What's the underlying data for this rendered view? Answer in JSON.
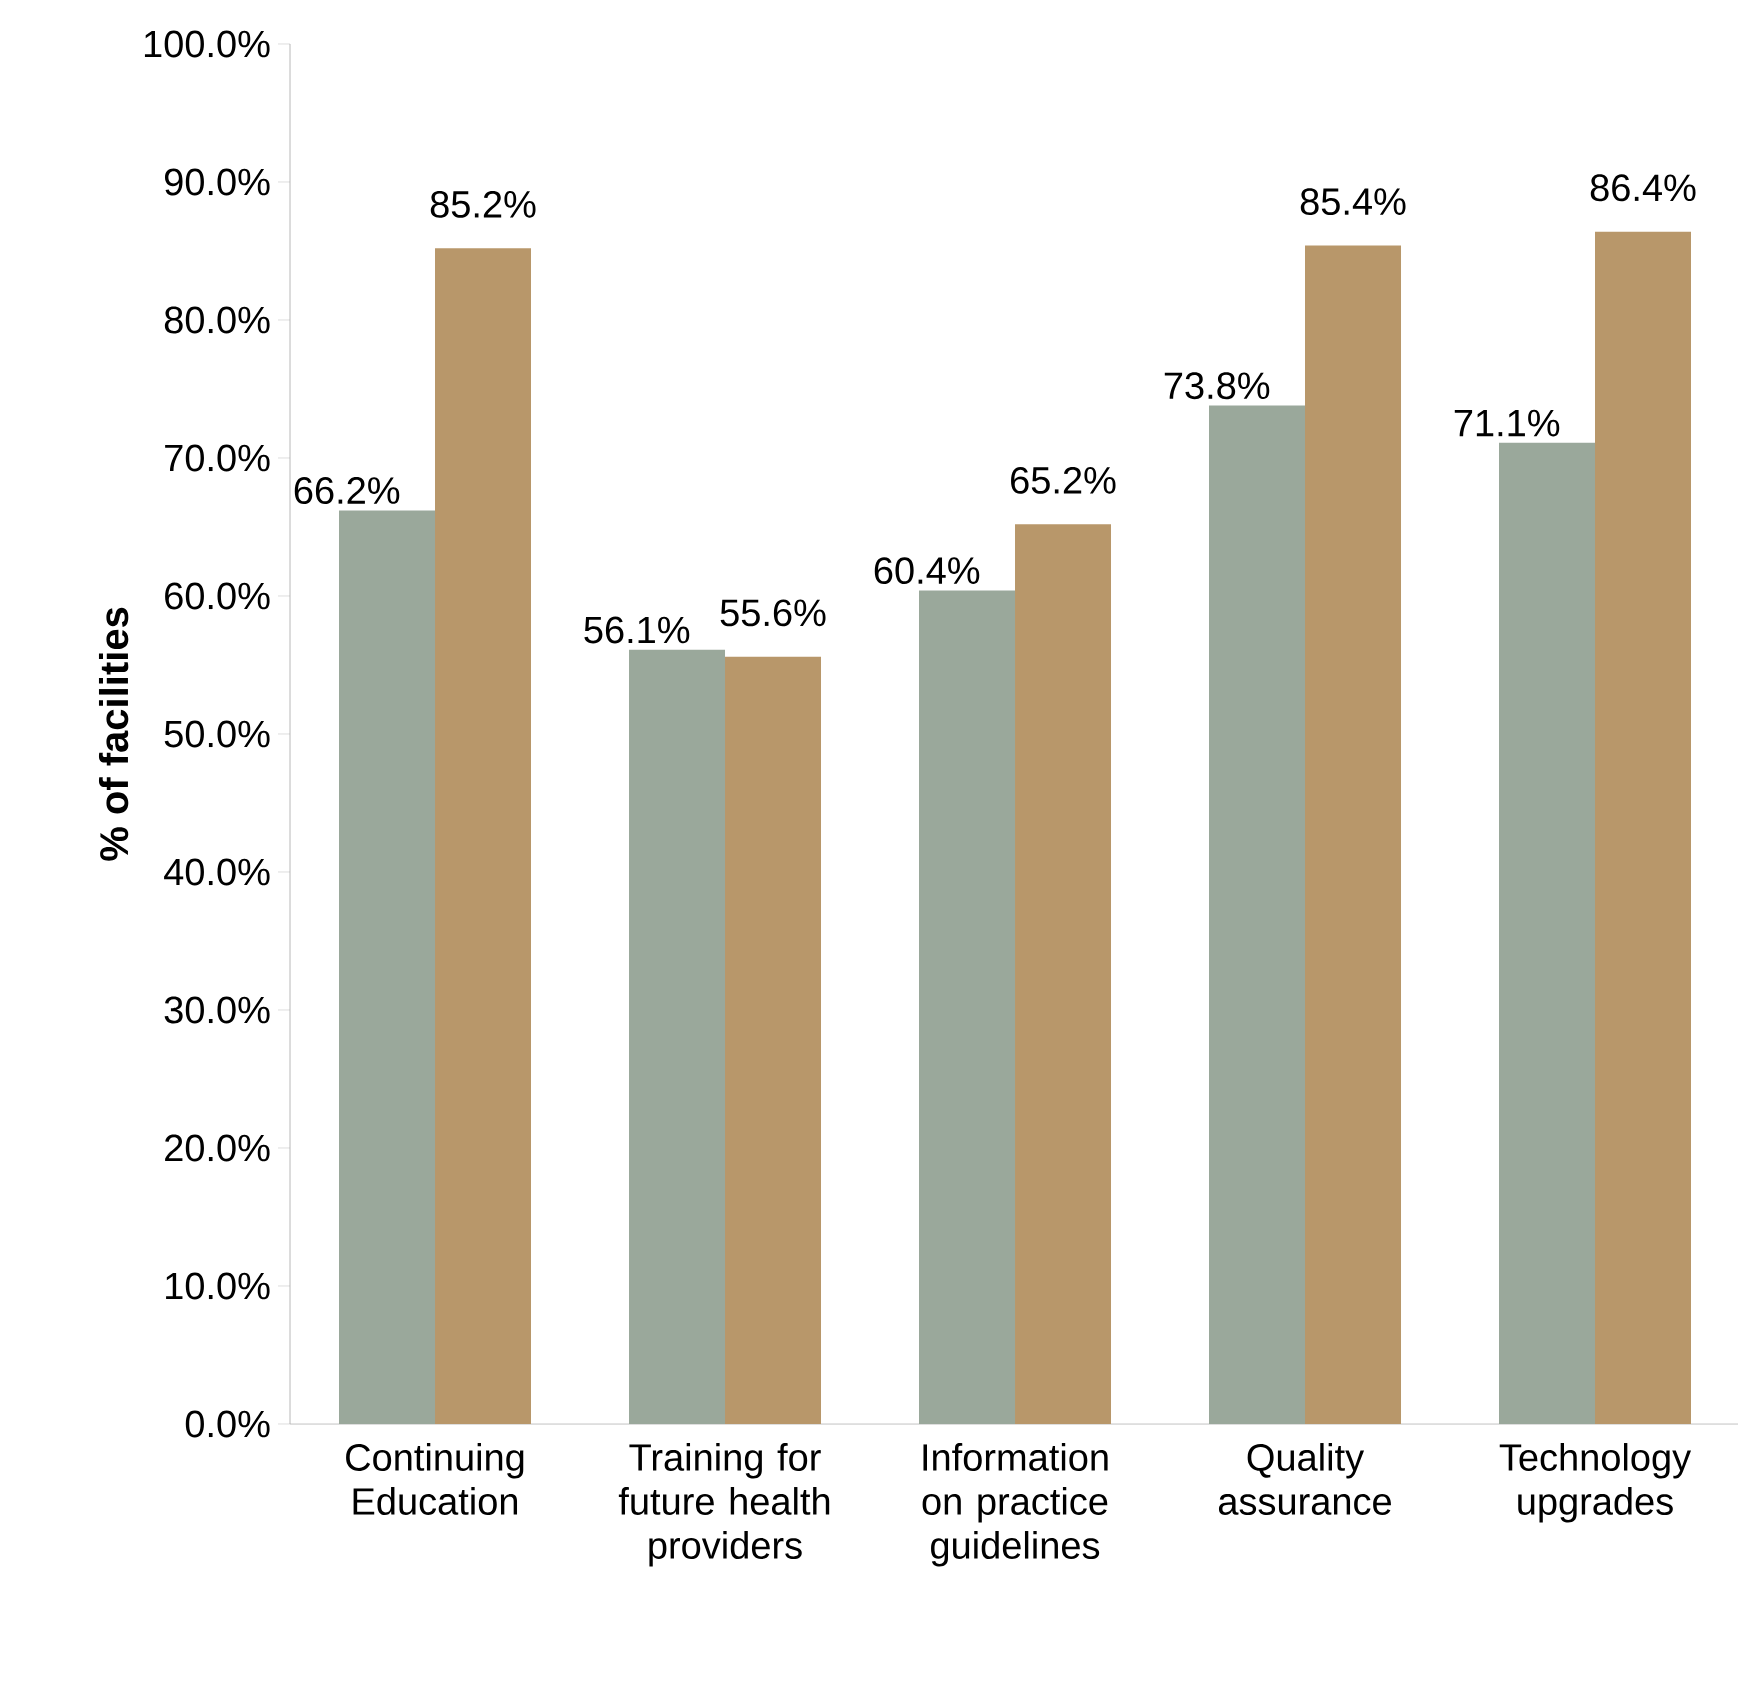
{
  "chart_data": {
    "type": "bar",
    "ylabel": "% of facilities",
    "categories": [
      "Continuing Education",
      "Training for future health providers",
      "Information on practice guidelines",
      "Quality assurance",
      "Technology upgrades"
    ],
    "series": [
      {
        "color": "#9aa89b",
        "values": [
          66.2,
          56.1,
          60.4,
          73.8,
          71.1
        ],
        "value_labels": [
          "66.2%",
          "56.1%",
          "60.4%",
          "73.8%",
          "71.1%"
        ]
      },
      {
        "color": "#b8976a",
        "values": [
          85.2,
          55.6,
          65.2,
          85.4,
          86.4
        ],
        "value_labels": [
          "85.2%",
          "55.6%",
          "65.2%",
          "85.4%",
          "86.4%"
        ]
      }
    ],
    "ylim": [
      0,
      100
    ],
    "yticks": [
      {
        "value": 0,
        "label": "0.0%"
      },
      {
        "value": 10,
        "label": "10.0%"
      },
      {
        "value": 20,
        "label": "20.0%"
      },
      {
        "value": 30,
        "label": "30.0%"
      },
      {
        "value": 40,
        "label": "40.0%"
      },
      {
        "value": 50,
        "label": "50.0%"
      },
      {
        "value": 60,
        "label": "60.0%"
      },
      {
        "value": 70,
        "label": "70.0%"
      },
      {
        "value": 80,
        "label": "80.0%"
      },
      {
        "value": 90,
        "label": "90.0%"
      },
      {
        "value": 100,
        "label": "100.0%"
      }
    ]
  }
}
